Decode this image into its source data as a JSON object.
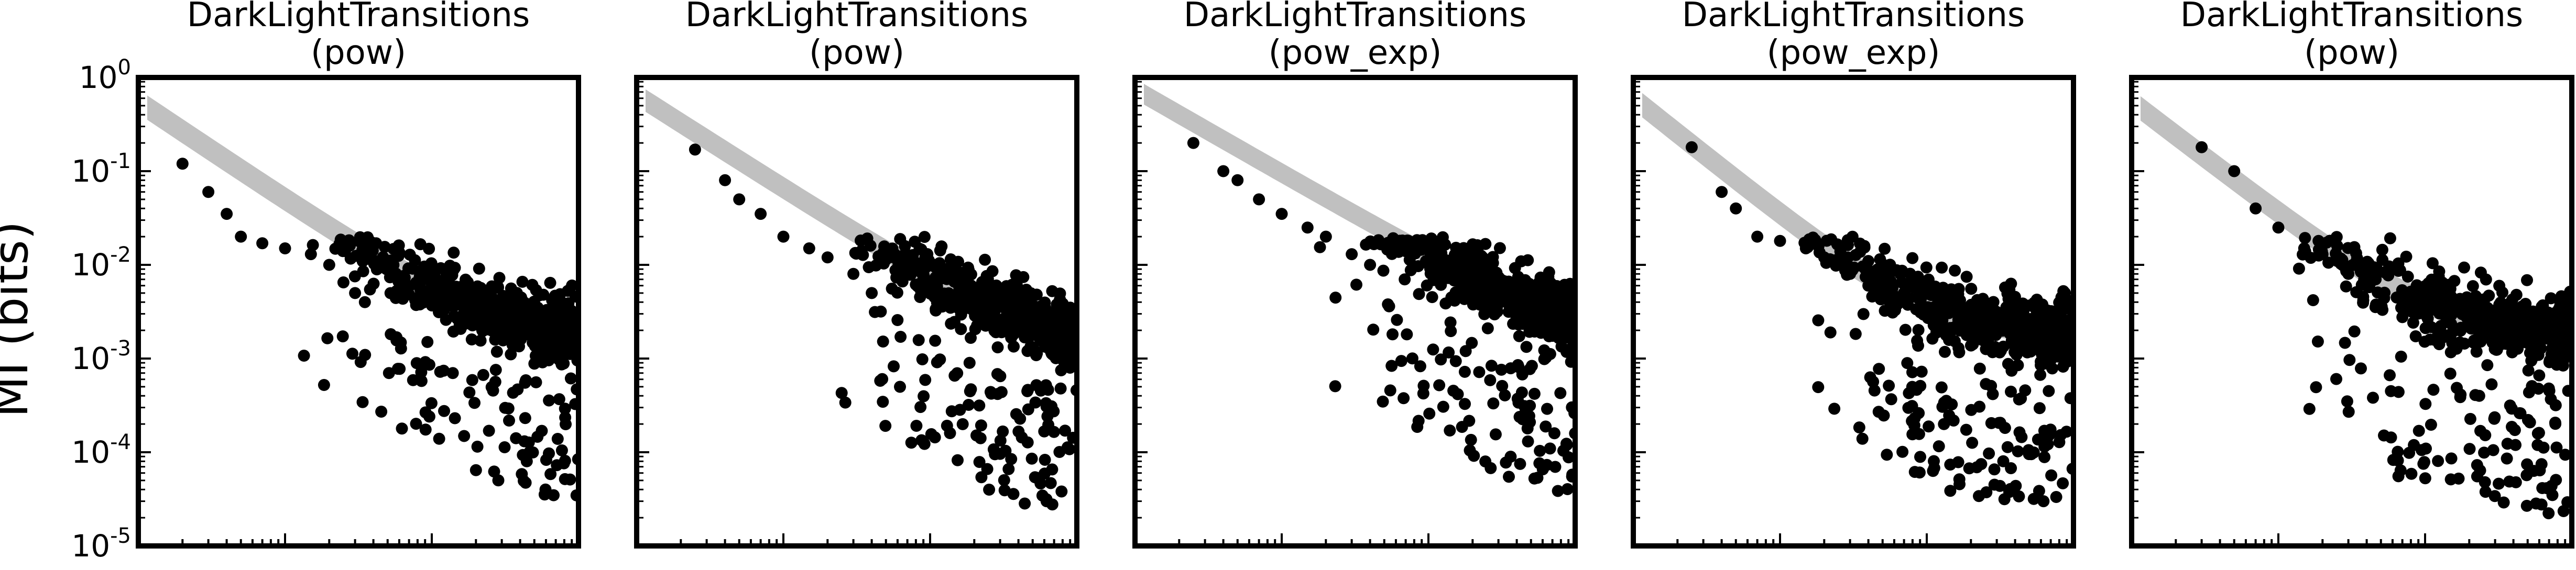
{
  "figure": {
    "ylabel": "MI (bits)",
    "y_tick_labels": [
      {
        "base": "10",
        "exp": "0"
      },
      {
        "base": "10",
        "exp": "-1"
      },
      {
        "base": "10",
        "exp": "-2"
      },
      {
        "base": "10",
        "exp": "-3"
      },
      {
        "base": "10",
        "exp": "-4"
      },
      {
        "base": "10",
        "exp": "-5"
      }
    ]
  },
  "chart_data": [
    {
      "type": "scatter",
      "title": "DarkLightTransitions\n(pow)",
      "xscale": "log",
      "yscale": "log",
      "xlim": [
        1,
        1000
      ],
      "ylim": [
        1e-05,
        1
      ],
      "grid": false,
      "xlabel": "",
      "fit_band": {
        "a": 0.55,
        "b": 1.05,
        "c": 0.0015,
        "sigma_dex": 0.13
      },
      "points": {
        "anchors": [
          [
            2,
            0.12
          ],
          [
            3,
            0.06
          ],
          [
            4,
            0.035
          ],
          [
            5,
            0.02
          ],
          [
            7,
            0.017
          ],
          [
            10,
            0.015
          ],
          [
            15,
            0.013
          ],
          [
            20,
            0.01
          ],
          [
            25,
            0.0065
          ],
          [
            30,
            0.005
          ],
          [
            35,
            0.004
          ]
        ],
        "cloud": {
          "n": 640,
          "x_range": [
            8,
            1000
          ],
          "center": "fit",
          "spread_dex": 0.32,
          "low_tail_fraction": 0.16,
          "low_tail_dex": [
            0.6,
            1.8
          ]
        }
      }
    },
    {
      "type": "scatter",
      "title": "DarkLightTransitions\n(pow)",
      "xscale": "log",
      "yscale": "log",
      "xlim": [
        1,
        1000
      ],
      "ylim": [
        1e-05,
        1
      ],
      "grid": false,
      "xlabel": "",
      "fit_band": {
        "a": 0.65,
        "b": 1.0,
        "c": 0.0012,
        "sigma_dex": 0.12
      },
      "points": {
        "anchors": [
          [
            2.5,
            0.17
          ],
          [
            4,
            0.08
          ],
          [
            5,
            0.05
          ],
          [
            7,
            0.035
          ],
          [
            10,
            0.02
          ],
          [
            15,
            0.015
          ],
          [
            20,
            0.012
          ],
          [
            30,
            0.008
          ],
          [
            40,
            0.005
          ]
        ],
        "cloud": {
          "n": 640,
          "x_range": [
            8,
            1000
          ],
          "center": "fit",
          "spread_dex": 0.32,
          "low_tail_fraction": 0.17,
          "low_tail_dex": [
            0.6,
            2.0
          ]
        }
      }
    },
    {
      "type": "scatter",
      "title": "DarkLightTransitions\n(pow_exp)",
      "xscale": "log",
      "yscale": "log",
      "xlim": [
        1,
        1000
      ],
      "ylim": [
        1e-05,
        1
      ],
      "grid": false,
      "xlabel": "",
      "fit_band": {
        "a": 0.75,
        "b": 0.9,
        "c": 0.001,
        "sigma_dex": 0.11
      },
      "points": {
        "anchors": [
          [
            2.5,
            0.2
          ],
          [
            4,
            0.1
          ],
          [
            5,
            0.08
          ],
          [
            7,
            0.05
          ],
          [
            10,
            0.035
          ],
          [
            15,
            0.025
          ],
          [
            20,
            0.02
          ],
          [
            30,
            0.013
          ],
          [
            40,
            0.01
          ]
        ],
        "cloud": {
          "n": 640,
          "x_range": [
            10,
            1000
          ],
          "center": "fit",
          "spread_dex": 0.33,
          "low_tail_fraction": 0.17,
          "low_tail_dex": [
            0.6,
            2.0
          ]
        }
      }
    },
    {
      "type": "scatter",
      "title": "DarkLightTransitions\n(pow_exp)",
      "xscale": "log",
      "yscale": "log",
      "xlim": [
        1,
        1000
      ],
      "ylim": [
        1e-05,
        1
      ],
      "grid": false,
      "xlabel": "",
      "fit_band": {
        "a": 0.6,
        "b": 1.25,
        "c": 0.0018,
        "sigma_dex": 0.13
      },
      "points": {
        "anchors": [
          [
            2.5,
            0.18
          ],
          [
            4,
            0.06
          ],
          [
            5,
            0.04
          ],
          [
            7,
            0.02
          ],
          [
            10,
            0.018
          ],
          [
            15,
            0.015
          ],
          [
            20,
            0.012
          ],
          [
            30,
            0.008
          ],
          [
            40,
            0.006
          ]
        ],
        "cloud": {
          "n": 640,
          "x_range": [
            8,
            1000
          ],
          "center": "fit",
          "spread_dex": 0.32,
          "low_tail_fraction": 0.18,
          "low_tail_dex": [
            0.6,
            1.9
          ]
        }
      }
    },
    {
      "type": "scatter",
      "title": "DarkLightTransitions\n(pow)",
      "xscale": "log",
      "yscale": "log",
      "xlim": [
        1,
        1000
      ],
      "ylim": [
        1e-05,
        1
      ],
      "grid": false,
      "xlabel": "",
      "fit_band": {
        "a": 0.55,
        "b": 1.2,
        "c": 0.0018,
        "sigma_dex": 0.13
      },
      "points": {
        "anchors": [
          [
            3,
            0.18
          ],
          [
            5,
            0.1
          ],
          [
            7,
            0.04
          ],
          [
            10,
            0.025
          ],
          [
            15,
            0.015
          ],
          [
            20,
            0.013
          ],
          [
            30,
            0.008
          ],
          [
            40,
            0.006
          ]
        ],
        "cloud": {
          "n": 640,
          "x_range": [
            8,
            1000
          ],
          "center": "fit",
          "spread_dex": 0.33,
          "low_tail_fraction": 0.17,
          "low_tail_dex": [
            0.6,
            2.0
          ]
        }
      }
    }
  ]
}
